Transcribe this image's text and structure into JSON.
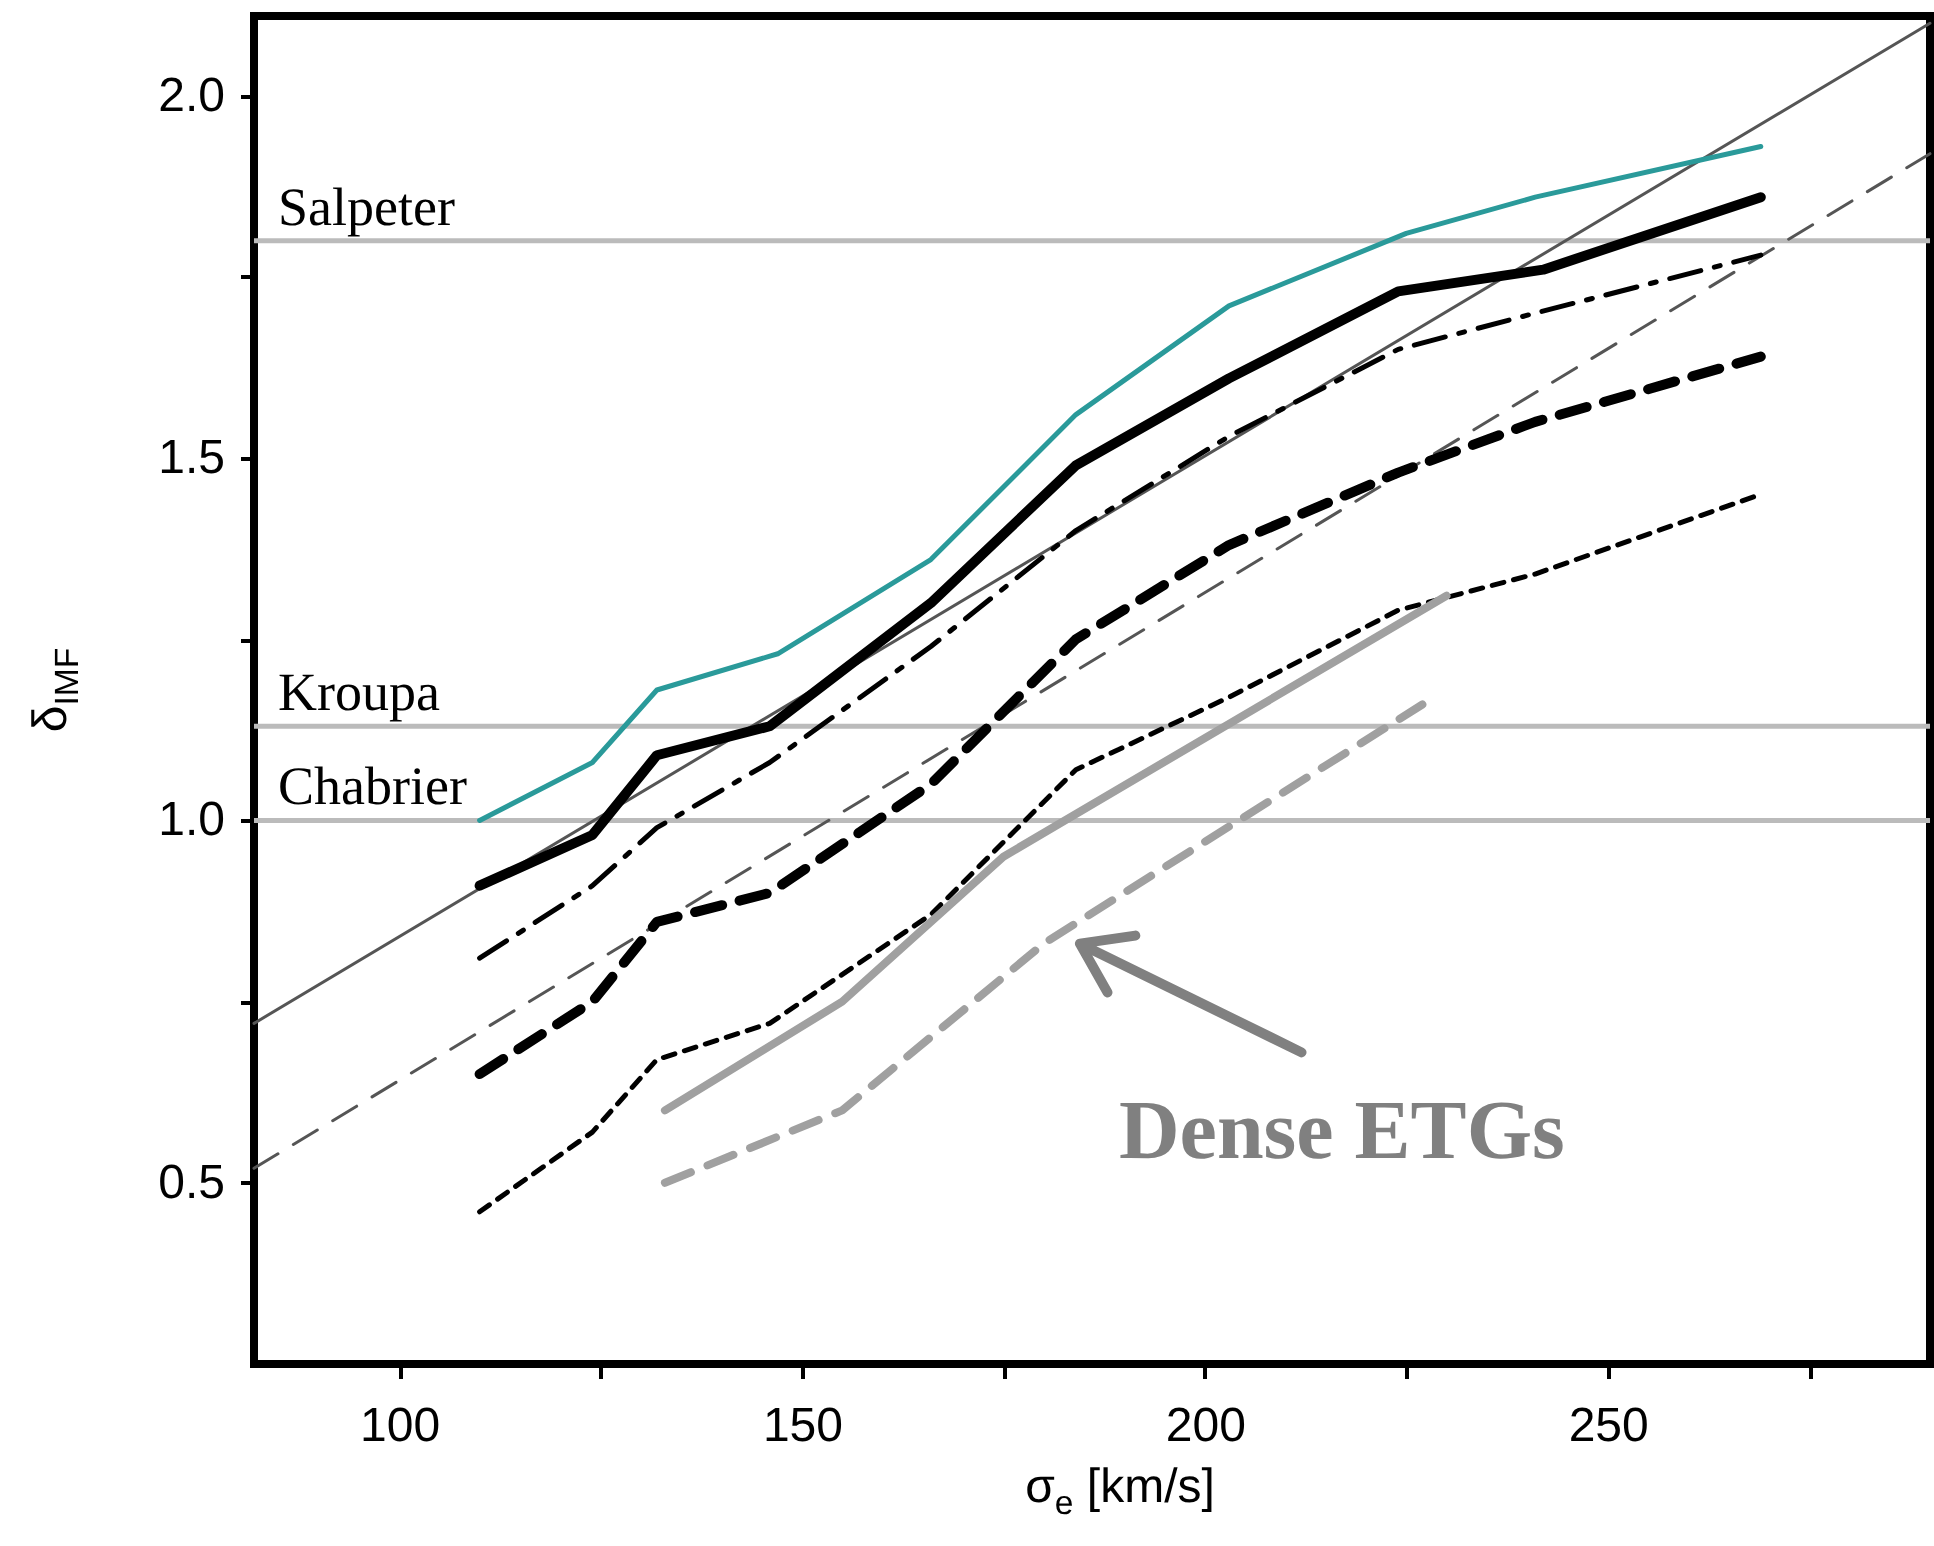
{
  "chart_data": {
    "type": "line",
    "xlabel": "σ$_{e}$ [km/s]",
    "ylabel": "δ$_{IMF}$",
    "xlim": [
      82,
      290
    ],
    "ylim": [
      0.25,
      2.11
    ],
    "xticks": [
      100,
      {
        "value": 125,
        "label": null
      },
      150,
      {
        "value": 175,
        "label": null
      },
      200,
      {
        "value": 225,
        "label": null
      },
      250,
      {
        "value": 275,
        "label": null
      }
    ],
    "yticks": [
      0.5,
      {
        "value": 0.75,
        "label": null
      },
      {
        "value": 1,
        "label": "1.0"
      },
      {
        "value": 1.25,
        "label": null
      },
      1.5,
      {
        "value": 1.75,
        "label": null
      },
      {
        "value": 2,
        "label": "2.0"
      }
    ],
    "grid": false,
    "ref_lines": [
      {
        "axis": "y",
        "value": 1.8,
        "label": "Salpeter",
        "color": "#bbbbbb"
      },
      {
        "axis": "y",
        "value": 1.13,
        "label": "Kroupa",
        "color": "#bbbbbb"
      },
      {
        "axis": "y",
        "value": 1.0,
        "label": "Chabrier",
        "color": "#bbbbbb"
      }
    ],
    "series": [
      {
        "color": "#555555",
        "line_style": "solid",
        "x": [
          82,
          290
        ],
        "values": [
          0.72,
          2.1
        ]
      },
      {
        "color": "#555555",
        "line_style": "dashed",
        "x": [
          82,
          290
        ],
        "values": [
          0.52,
          1.92
        ]
      },
      {
        "color": "#2a9a9a",
        "line_style": "solid",
        "x": [
          110,
          124,
          132,
          147,
          166,
          184,
          203,
          225,
          241,
          269
        ],
        "values": [
          1.0,
          1.08,
          1.18,
          1.23,
          1.36,
          1.56,
          1.71,
          1.81,
          1.86,
          1.93
        ]
      },
      {
        "color": "#000000",
        "line_style": "solid",
        "x": [
          110,
          124,
          132,
          146,
          166,
          184,
          203,
          224,
          242,
          269
        ],
        "values": [
          0.91,
          0.98,
          1.09,
          1.13,
          1.3,
          1.49,
          1.61,
          1.73,
          1.76,
          1.86
        ]
      },
      {
        "color": "#000000",
        "line_style": "dashdot",
        "x": [
          110,
          124,
          132,
          146,
          166,
          184,
          203,
          224,
          241,
          269
        ],
        "values": [
          0.81,
          0.91,
          0.99,
          1.08,
          1.24,
          1.4,
          1.53,
          1.65,
          1.7,
          1.78
        ]
      },
      {
        "color": "#000000",
        "line_style": "dashed",
        "x": [
          110,
          124,
          132,
          146,
          166,
          184,
          203,
          224,
          241,
          269
        ],
        "values": [
          0.65,
          0.75,
          0.86,
          0.9,
          1.05,
          1.25,
          1.38,
          1.48,
          1.55,
          1.64
        ]
      },
      {
        "color": "#000000",
        "line_style": "dotted",
        "x": [
          110,
          124,
          132,
          146,
          166,
          184,
          203,
          224,
          241,
          269
        ],
        "values": [
          0.46,
          0.57,
          0.67,
          0.72,
          0.87,
          1.07,
          1.17,
          1.29,
          1.34,
          1.45
        ]
      },
      {
        "color": "#a0a0a0",
        "line_style": "solid",
        "x": [
          133,
          155,
          175,
          230
        ],
        "values": [
          0.6,
          0.75,
          0.95,
          1.31
        ]
      },
      {
        "color": "#a0a0a0",
        "line_style": "dashed",
        "x": [
          133,
          155,
          180,
          227
        ],
        "values": [
          0.5,
          0.6,
          0.83,
          1.16
        ]
      }
    ],
    "annotations": [
      {
        "text": "Dense ETGs",
        "x": 183,
        "y": 0.85
      }
    ]
  }
}
